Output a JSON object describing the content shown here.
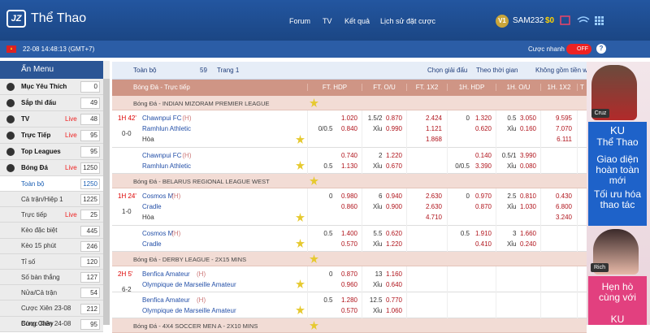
{
  "header": {
    "logo": "JZ",
    "title": "Thể Thao",
    "nav": [
      "Forum",
      "TV",
      "Kết quả",
      "Lịch sử đặt cược"
    ],
    "level": "V1",
    "username": "SAM232",
    "balance": "$0"
  },
  "subbar": {
    "datetime": "22-08 14:48:13 (GMT+7)",
    "quick_bet": "Cược nhanh",
    "toggle": "OFF",
    "help": "?"
  },
  "sidebar": {
    "title": "Ẩn Menu",
    "items": [
      {
        "label": "Mục Yêu Thích",
        "count": 0
      },
      {
        "label": "Sắp thi đấu",
        "count": 49
      },
      {
        "label": "TV",
        "tag": "Live",
        "count": 48
      },
      {
        "label": "Trực Tiếp",
        "tag": "Live",
        "count": 95
      },
      {
        "label": "Top Leagues",
        "count": 95
      },
      {
        "label": "Bóng Đá",
        "tag": "Live",
        "count": 1250
      }
    ],
    "sub_items": [
      {
        "label": "Toàn bộ",
        "count": 1250
      },
      {
        "label": "Cả trận/Hiệp 1",
        "count": 1225
      },
      {
        "label": "Trực tiếp",
        "tag": "Live",
        "count": 25
      },
      {
        "label": "Kèo đặc biệt",
        "count": 445
      },
      {
        "label": "Kèo 15 phút",
        "count": 246
      },
      {
        "label": "Tỉ số",
        "count": 120
      },
      {
        "label": "Số bàn thắng",
        "count": 127
      },
      {
        "label": "Nửa/Cả trận",
        "count": 54
      },
      {
        "label": "Cược Xiên 23-08",
        "count": 212
      },
      {
        "label": "Cược Xiên 24-08",
        "count": 95
      }
    ],
    "cut_item": "Bóng Chày"
  },
  "toolbar": {
    "view": "Toàn bộ",
    "count": 59,
    "page": "Trang 1",
    "filters": [
      "Chọn giải đấu",
      "Theo thời gian",
      "Không gồm tiền w"
    ]
  },
  "table": {
    "section": "Bóng Đá - Trực tiếp",
    "columns": [
      "FT. HDP",
      "FT. O/U",
      "FT. 1X2",
      "1H. HDP",
      "1H. O/U",
      "1H. 1X2",
      "T"
    ],
    "leagues": [
      {
        "name": "Bóng Đá - INDIAN MIZORAM PREMIER LEAGUE",
        "matches": [
          {
            "time": "1H 42'",
            "score": "0-0",
            "rows": [
              {
                "home": "Chawnpui FC",
                "home_tag": "(H)",
                "away": "Ramhlun Athletic",
                "draw": "Hòa",
                "ft_hdp": {
                  "hcap": [
                    null,
                    "0/0.5"
                  ],
                  "odds": [
                    "1.020",
                    "0.840"
                  ]
                },
                "ft_ou": {
                  "hcap": [
                    "1.5/2",
                    "Xỉu"
                  ],
                  "odds": [
                    "0.870",
                    "0.990"
                  ]
                },
                "ft_1x2": [
                  "2.424",
                  "1.121",
                  "1.868"
                ],
                "h1_hdp": {
                  "hcap": [
                    "0",
                    null
                  ],
                  "odds": [
                    "1.320",
                    "0.620"
                  ]
                },
                "h1_ou": {
                  "hcap": [
                    "0.5",
                    "Xỉu"
                  ],
                  "odds": [
                    "3.050",
                    "0.160"
                  ]
                },
                "h1_1x2": [
                  "9.595",
                  "7.070",
                  "6.111"
                ]
              },
              {
                "home": "Chawnpui FC",
                "home_tag": "(H)",
                "away": "Ramhlun Athletic",
                "ft_hdp": {
                  "hcap": [
                    null,
                    "0.5"
                  ],
                  "odds": [
                    "0.740",
                    "1.130"
                  ]
                },
                "ft_ou": {
                  "hcap": [
                    "2",
                    "Xỉu"
                  ],
                  "odds": [
                    "1.220",
                    "0.670"
                  ]
                },
                "h1_hdp": {
                  "hcap": [
                    null,
                    "0/0.5"
                  ],
                  "odds": [
                    "0.140",
                    "3.390"
                  ]
                },
                "h1_ou": {
                  "hcap": [
                    "0.5/1",
                    "Xỉu"
                  ],
                  "odds": [
                    "3.990",
                    "0.080"
                  ]
                }
              }
            ]
          }
        ]
      },
      {
        "name": "Bóng Đá - BELARUS REGIONAL LEAGUE WEST",
        "matches": [
          {
            "time": "1H 24'",
            "score": "1-0",
            "rows": [
              {
                "home": "Cosmos M",
                "home_tag": "(H)",
                "away": "Cradle",
                "draw": "Hòa",
                "ft_hdp": {
                  "hcap": [
                    "0",
                    null
                  ],
                  "odds": [
                    "0.980",
                    "0.860"
                  ]
                },
                "ft_ou": {
                  "hcap": [
                    "6",
                    "Xỉu"
                  ],
                  "odds": [
                    "0.940",
                    "0.900"
                  ]
                },
                "ft_1x2": [
                  "2.630",
                  "2.630",
                  "4.710"
                ],
                "h1_hdp": {
                  "hcap": [
                    "0",
                    null
                  ],
                  "odds": [
                    "0.970",
                    "0.870"
                  ]
                },
                "h1_ou": {
                  "hcap": [
                    "2.5",
                    "Xỉu"
                  ],
                  "odds": [
                    "0.810",
                    "1.030"
                  ]
                },
                "h1_1x2": [
                  "0.430",
                  "6.800",
                  "3.240"
                ]
              },
              {
                "home": "Cosmos M",
                "home_tag": "(H)",
                "away": "Cradle",
                "ft_hdp": {
                  "hcap": [
                    "0.5",
                    null
                  ],
                  "odds": [
                    "1.400",
                    "0.570"
                  ]
                },
                "ft_ou": {
                  "hcap": [
                    "5.5",
                    "Xỉu"
                  ],
                  "odds": [
                    "0.620",
                    "1.220"
                  ]
                },
                "h1_hdp": {
                  "hcap": [
                    "0.5",
                    null
                  ],
                  "odds": [
                    "1.910",
                    "0.410"
                  ]
                },
                "h1_ou": {
                  "hcap": [
                    "3",
                    "Xỉu"
                  ],
                  "odds": [
                    "1.660",
                    "0.240"
                  ]
                }
              }
            ]
          }
        ]
      },
      {
        "name": "Bóng Đá - DERBY LEAGUE - 2X15 MINS",
        "matches": [
          {
            "time": "2H 5'",
            "score": "6-2",
            "rows": [
              {
                "home": "Benfica Amateur",
                "home_tag": "(H)",
                "away": "Olympique de Marseille Amateur",
                "ft_hdp": {
                  "hcap": [
                    "0",
                    null
                  ],
                  "odds": [
                    "0.870",
                    "0.960"
                  ]
                },
                "ft_ou": {
                  "hcap": [
                    "13",
                    "Xỉu"
                  ],
                  "odds": [
                    "1.160",
                    "0.640"
                  ]
                }
              },
              {
                "home": "Benfica Amateur",
                "home_tag": "(H)",
                "away": "Olympique de Marseille Amateur",
                "ft_hdp": {
                  "hcap": [
                    "0.5",
                    null
                  ],
                  "odds": [
                    "1.280",
                    "0.570"
                  ]
                },
                "ft_ou": {
                  "hcap": [
                    "12.5",
                    "Xỉu"
                  ],
                  "odds": [
                    "0.770",
                    "1.060"
                  ]
                }
              }
            ]
          }
        ]
      },
      {
        "name": "Bóng Đá - 4X4 SOCCER MEN A - 2X10 MINS",
        "matches": []
      }
    ]
  },
  "ad": {
    "badge1": "Cruz",
    "brand": "KU",
    "brand_sub": "Thể Thao",
    "lines": [
      "Giao diện hoàn toàn mới",
      "Tối ưu hóa thao tác"
    ],
    "badge2": "Rich",
    "bottom": "Hẹn hò cùng với",
    "bottom_brand": "KU"
  }
}
